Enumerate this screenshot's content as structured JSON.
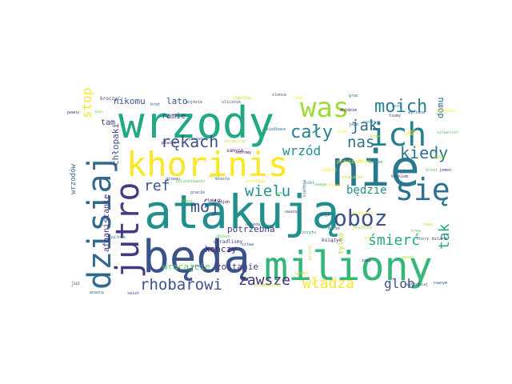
{
  "words": [
    {
      "text": "nie",
      "color": "#2a788e"
    },
    {
      "text": "atakują",
      "color": "#21908d"
    },
    {
      "text": "wrzody",
      "color": "#22a884"
    },
    {
      "text": "będą",
      "color": "#3b528b"
    },
    {
      "text": "miliony",
      "color": "#35b779"
    },
    {
      "text": "khorinis",
      "color": "#fde725"
    },
    {
      "text": "dzisiaj",
      "color": "#31688e"
    },
    {
      "text": "jutro",
      "color": "#443983"
    },
    {
      "text": "ich",
      "color": "#26828e"
    },
    {
      "text": "się",
      "color": "#2c728e"
    },
    {
      "text": "was",
      "color": "#a0da39"
    },
    {
      "text": "obóz",
      "color": "#3b528b"
    },
    {
      "text": "moich",
      "color": "#26828e"
    },
    {
      "text": "cały",
      "color": "#26828e"
    },
    {
      "text": "jak",
      "color": "#31688e"
    },
    {
      "text": "nas",
      "color": "#2c728e"
    },
    {
      "text": "kiedy",
      "color": "#2c728e"
    },
    {
      "text": "rękach",
      "color": "#3b528b"
    },
    {
      "text": "wrzód",
      "color": "#21908d"
    },
    {
      "text": "stop",
      "color": "#fde725"
    },
    {
      "text": "ref",
      "color": "#3b528b"
    },
    {
      "text": "mój",
      "color": "#3b528b"
    },
    {
      "text": "wielu",
      "color": "#21908d"
    },
    {
      "text": "będzie",
      "color": "#21908d"
    },
    {
      "text": "tak",
      "color": "#22a884"
    },
    {
      "text": "śmierć",
      "color": "#22a884"
    },
    {
      "text": "rhobarowi",
      "color": "#3b528b"
    },
    {
      "text": "zawsze",
      "color": "#472d7b"
    },
    {
      "text": "władza",
      "color": "#fde725"
    },
    {
      "text": "glob",
      "color": "#3b528b"
    },
    {
      "text": "domu",
      "color": "#31688e"
    },
    {
      "text": "lato",
      "color": "#3b528b"
    },
    {
      "text": "nikomu",
      "color": "#3b528b"
    },
    {
      "text": "ramie",
      "color": "#443983"
    },
    {
      "text": "tam",
      "color": "#472d7b"
    },
    {
      "text": "chłopaki",
      "color": "#3b528b"
    },
    {
      "text": "afganistanie",
      "color": "#472d7b"
    },
    {
      "text": "kończy",
      "color": "#482878"
    },
    {
      "text": "potrzebna",
      "color": "#443983"
    },
    {
      "text": "wracajcie",
      "color": "#5ec962"
    },
    {
      "text": "zostanie",
      "color": "#443983"
    },
    {
      "text": "wrzodów",
      "color": "#31688e"
    },
    {
      "text": "tylko",
      "color": "#b5de2b"
    },
    {
      "text": "samycn",
      "color": "#482878"
    },
    {
      "text": "kroczyć",
      "color": "#443983"
    },
    {
      "text": "pewnu",
      "color": "#443983"
    },
    {
      "text": "przyszedl",
      "color": "#fde725"
    },
    {
      "text": "krokiem",
      "color": "#443983"
    },
    {
      "text": "jemen",
      "color": "#443983"
    },
    {
      "text": "bilard",
      "color": "#482878"
    },
    {
      "text": "rownym",
      "color": "#3b528b"
    },
    {
      "text": "jeszcze",
      "color": "#9fda3a"
    },
    {
      "text": "juz",
      "color": "#3b528b"
    },
    {
      "text": "wnasny",
      "color": "#31688e"
    },
    {
      "text": "swiat",
      "color": "#443983"
    },
    {
      "text": "mógł",
      "color": "#3b528b"
    },
    {
      "text": "książyc",
      "color": "#472d7b"
    },
    {
      "text": "ukradlismy",
      "color": "#443983"
    },
    {
      "text": "kiełbsa",
      "color": "#31688e"
    },
    {
      "text": "wygłupiaj",
      "color": "#3b528b"
    },
    {
      "text": "zamy",
      "color": "#443983"
    },
    {
      "text": "bonu",
      "color": "#5ec962"
    },
    {
      "text": "pilnik",
      "color": "#31688e"
    },
    {
      "text": "takich",
      "color": "#440154"
    },
    {
      "text": "dnikch",
      "color": "#5ec962"
    },
    {
      "text": "biorzy",
      "color": "#b5de2b"
    },
    {
      "text": "mojeh",
      "color": "#440154"
    },
    {
      "text": "szczęscie",
      "color": "#c2df23"
    },
    {
      "text": "pierwszy",
      "color": "#31688e"
    },
    {
      "text": "przemierzam",
      "color": "#c2df23"
    },
    {
      "text": "płacić",
      "color": "#482878"
    },
    {
      "text": "kiełbase",
      "color": "#31688e"
    },
    {
      "text": "chwilka",
      "color": "#b5de2b"
    },
    {
      "text": "gracie",
      "color": "#3b528b"
    },
    {
      "text": "uwaga",
      "color": "#5ec962"
    },
    {
      "text": "zrozumieć",
      "color": "#b5de2b"
    },
    {
      "text": "odbeda",
      "color": "#3b528b"
    },
    {
      "text": "zdrowy",
      "color": "#440154"
    },
    {
      "text": "slonce",
      "color": "#3b528b"
    },
    {
      "text": "wyrtana",
      "color": "#31688e"
    },
    {
      "text": "dojdzie",
      "color": "#440154"
    },
    {
      "text": "oczy",
      "color": "#31688e"
    },
    {
      "text": "tsumy",
      "color": "#443983"
    },
    {
      "text": "uwięzieni",
      "color": "#fde725"
    },
    {
      "text": "szczytu",
      "color": "#21908d"
    },
    {
      "text": "usnie",
      "color": "#21908d"
    },
    {
      "text": "nowy",
      "color": "#b5de2b"
    },
    {
      "text": "dalej",
      "color": "#fde725"
    },
    {
      "text": "nikt",
      "color": "#21908d"
    },
    {
      "text": "maski",
      "color": "#b5de2b"
    },
    {
      "text": "inne",
      "color": "#fde725"
    },
    {
      "text": "drzwi",
      "color": "#5ec962"
    },
    {
      "text": "pojdzie",
      "color": "#3b528b"
    },
    {
      "text": "kolego",
      "color": "#fde725"
    },
    {
      "text": "ulicznik",
      "color": "#3b528b"
    },
    {
      "text": "okiem",
      "color": "#b5de2b"
    },
    {
      "text": "drzewu",
      "color": "#3b528b"
    },
    {
      "text": "grać",
      "color": "#31688e"
    },
    {
      "text": "zyczycie",
      "color": "#fde725"
    },
    {
      "text": "jego",
      "color": "#31688e"
    },
    {
      "text": "wraca",
      "color": "#31688e"
    },
    {
      "text": "uważaj",
      "color": "#3b528b"
    },
    {
      "text": "poszukiwaniu",
      "color": "#5ec962"
    },
    {
      "text": "dusze",
      "color": "#31688e"
    },
    {
      "text": "ludzie",
      "color": "#21908d"
    },
    {
      "text": "sitwa",
      "color": "#3b528b"
    },
    {
      "text": "okaz",
      "color": "#fde725"
    },
    {
      "text": "drogi",
      "color": "#5ec962"
    },
    {
      "text": "pamięć",
      "color": "#fde725"
    },
    {
      "text": "siad",
      "color": "#fde725"
    },
    {
      "text": "brat",
      "color": "#3b528b"
    },
    {
      "text": "czas",
      "color": "#fde725"
    },
    {
      "text": "wybór",
      "color": "#b5de2b"
    },
    {
      "text": "sylwester",
      "color": "#5ec962"
    },
    {
      "text": "ryzyko",
      "color": "#b5de2b"
    },
    {
      "text": "miasta",
      "color": "#31688e"
    },
    {
      "text": "bym",
      "color": "#5ec962"
    },
    {
      "text": "przebywa",
      "color": "#fde725"
    },
    {
      "text": "chory",
      "color": "#31688e"
    },
    {
      "text": "krew",
      "color": "#5ec962"
    },
    {
      "text": "kto",
      "color": "#fde725"
    },
    {
      "text": "boże",
      "color": "#b5de2b"
    }
  ]
}
